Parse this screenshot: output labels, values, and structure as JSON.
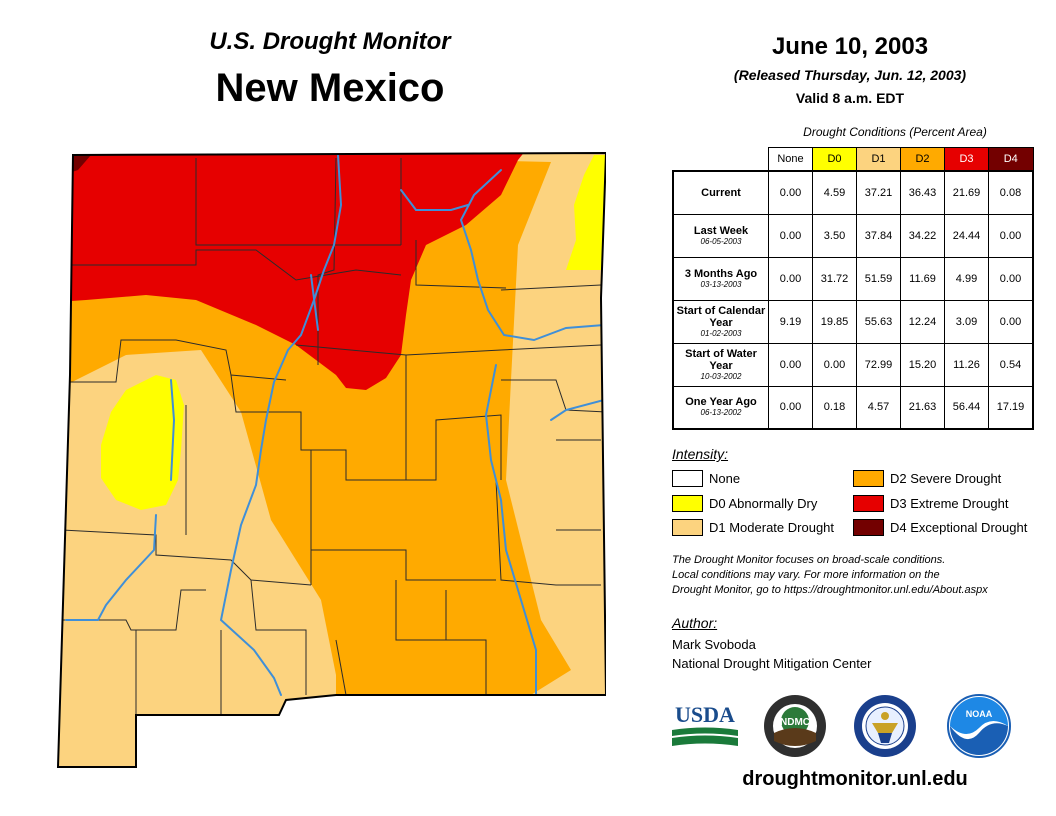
{
  "header": {
    "subtitle": "U.S. Drought Monitor",
    "title": "New Mexico"
  },
  "date": {
    "main": "June 10, 2003",
    "released": "(Released Thursday, Jun. 12, 2003)",
    "valid": "Valid 8 a.m. EDT"
  },
  "table": {
    "title": "Drought Conditions (Percent Area)",
    "columns": [
      "None",
      "D0",
      "D1",
      "D2",
      "D3",
      "D4"
    ],
    "column_colors": [
      "#ffffff",
      "#ffff00",
      "#fcd37f",
      "#ffaa00",
      "#e60000",
      "#730000"
    ],
    "column_text_colors": [
      "#000000",
      "#000000",
      "#000000",
      "#000000",
      "#ffffff",
      "#ffffff"
    ],
    "rows": [
      {
        "label": "Current",
        "date": "",
        "values": [
          "0.00",
          "4.59",
          "37.21",
          "36.43",
          "21.69",
          "0.08"
        ]
      },
      {
        "label": "Last Week",
        "date": "06-05-2003",
        "values": [
          "0.00",
          "3.50",
          "37.84",
          "34.22",
          "24.44",
          "0.00"
        ]
      },
      {
        "label": "3 Months Ago",
        "date": "03-13-2003",
        "values": [
          "0.00",
          "31.72",
          "51.59",
          "11.69",
          "4.99",
          "0.00"
        ]
      },
      {
        "label": "Start of Calendar Year",
        "date": "01-02-2003",
        "values": [
          "9.19",
          "19.85",
          "55.63",
          "12.24",
          "3.09",
          "0.00"
        ]
      },
      {
        "label": "Start of Water Year",
        "date": "10-03-2002",
        "values": [
          "0.00",
          "0.00",
          "72.99",
          "15.20",
          "11.26",
          "0.54"
        ]
      },
      {
        "label": "One Year Ago",
        "date": "06-13-2002",
        "values": [
          "0.00",
          "0.18",
          "4.57",
          "21.63",
          "56.44",
          "17.19"
        ]
      }
    ]
  },
  "legend": {
    "title": "Intensity:",
    "items": [
      {
        "label": "None",
        "color": "#ffffff"
      },
      {
        "label": "D0 Abnormally Dry",
        "color": "#ffff00"
      },
      {
        "label": "D1 Moderate Drought",
        "color": "#fcd37f"
      },
      {
        "label": "D2 Severe Drought",
        "color": "#ffaa00"
      },
      {
        "label": "D3 Extreme Drought",
        "color": "#e60000"
      },
      {
        "label": "D4 Exceptional Drought",
        "color": "#730000"
      }
    ]
  },
  "note": {
    "line1": "The Drought Monitor focuses on broad-scale conditions.",
    "line2": "Local conditions may vary. For more information on the",
    "line3": "Drought Monitor, go to https://droughtmonitor.unl.edu/About.aspx"
  },
  "author": {
    "heading": "Author:",
    "name": "Mark Svoboda",
    "org": "National Drought Mitigation Center"
  },
  "logos": {
    "usda": "USDA",
    "ndmc": "NDMC",
    "noaa": "NOAA"
  },
  "map_colors": {
    "d0": "#ffff00",
    "d1": "#fcd37f",
    "d2": "#ffaa00",
    "d3": "#e60000",
    "d4": "#730000",
    "river": "#3f8fd8"
  },
  "footer": {
    "url": "droughtmonitor.unl.edu"
  }
}
